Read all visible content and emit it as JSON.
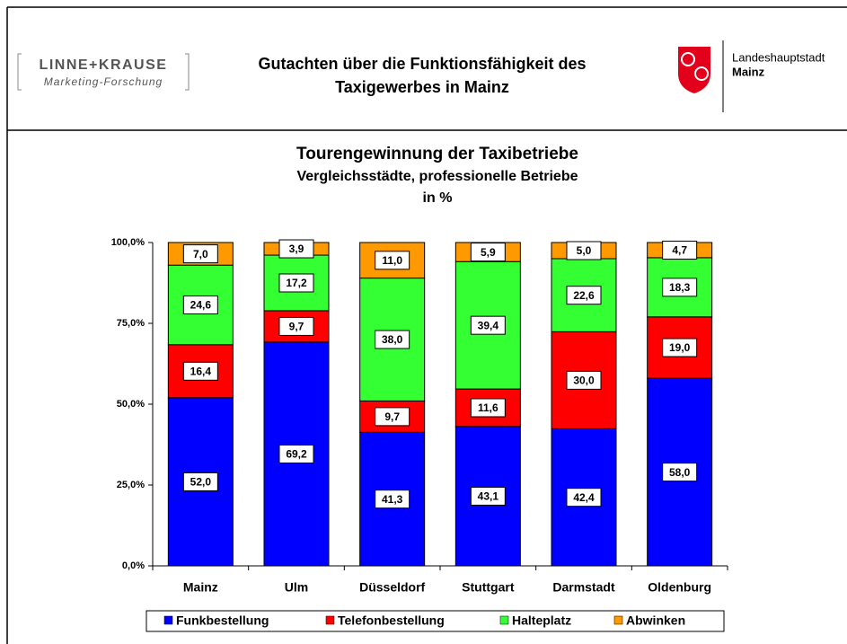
{
  "header": {
    "logo_name": "LINNE+KRAUSE",
    "logo_sub": "Marketing-Forschung",
    "title_lines": [
      "Gutachten über die Funktionsfähigkeit des",
      "Taxigewerbes in Mainz"
    ],
    "city_lines": [
      "Landeshauptstadt",
      "Mainz"
    ]
  },
  "chart_data": {
    "type": "bar",
    "stacked": true,
    "title": "Tourengewinnung der Taxibetriebe",
    "subtitle": [
      "Vergleichsstädte, professionelle Betriebe",
      "in %"
    ],
    "categories": [
      "Mainz",
      "Ulm",
      "Düsseldorf",
      "Stuttgart",
      "Darmstadt",
      "Oldenburg"
    ],
    "series": [
      {
        "name": "Funkbestellung",
        "color": "#0000ff",
        "values": [
          52.0,
          69.2,
          41.3,
          43.1,
          42.4,
          58.0
        ],
        "value_labels": [
          "52,0",
          "69,2",
          "41,3",
          "43,1",
          "42,4",
          "58,0"
        ]
      },
      {
        "name": "Telefonbestellung",
        "color": "#ff0000",
        "values": [
          16.4,
          9.7,
          9.7,
          11.6,
          30.0,
          19.0
        ],
        "value_labels": [
          "16,4",
          "9,7",
          "9,7",
          "11,6",
          "30,0",
          "19,0"
        ]
      },
      {
        "name": "Halteplatz",
        "color": "#33ff33",
        "values": [
          24.6,
          17.2,
          38.0,
          39.4,
          22.6,
          18.3
        ],
        "value_labels": [
          "24,6",
          "17,2",
          "38,0",
          "39,4",
          "22,6",
          "18,3"
        ]
      },
      {
        "name": "Abwinken",
        "color": "#ff9900",
        "values": [
          7.0,
          3.9,
          11.0,
          5.9,
          5.0,
          4.7
        ],
        "value_labels": [
          "7,0",
          "3,9",
          "11,0",
          "5,9",
          "5,0",
          "4,7"
        ]
      }
    ],
    "ylim": [
      0,
      100
    ],
    "yticks": [
      {
        "value": 0,
        "label": "0,0%"
      },
      {
        "value": 25,
        "label": "25,0%"
      },
      {
        "value": 50,
        "label": "50,0%"
      },
      {
        "value": 75,
        "label": "75,0%"
      },
      {
        "value": 100,
        "label": "100,0%"
      }
    ],
    "legend": "bottom"
  }
}
